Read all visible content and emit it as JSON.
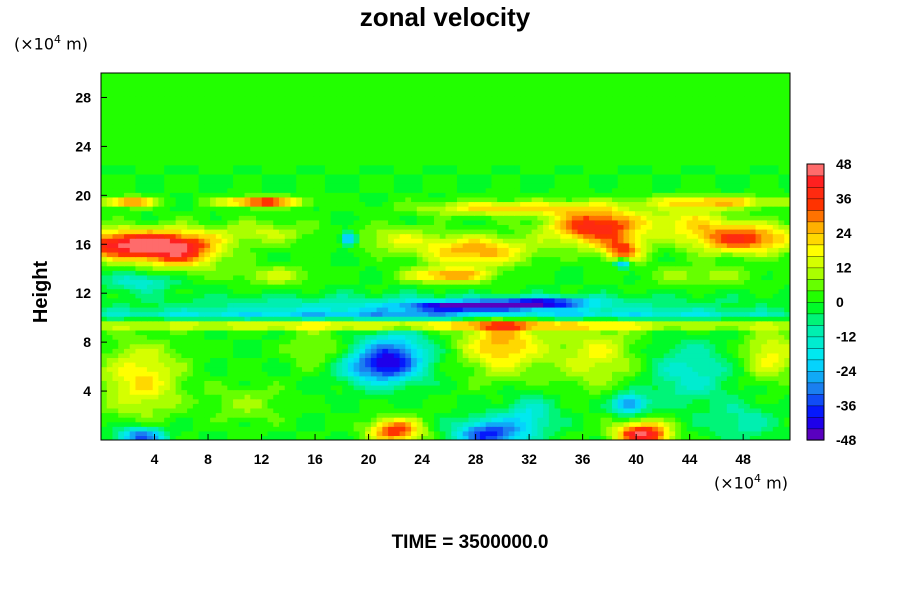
{
  "chart_data": {
    "type": "heatmap",
    "title": "zonal velocity",
    "xlabel": "",
    "ylabel": "Height",
    "x_unit_label": "(×10",
    "x_unit_exp": "4",
    "x_unit_tail": " m)",
    "y_unit_label": "(×10",
    "y_unit_exp": "4",
    "y_unit_tail": " m)",
    "xlim": [
      0,
      51.5
    ],
    "ylim": [
      0,
      30
    ],
    "x_ticks": [
      4,
      8,
      12,
      16,
      20,
      24,
      28,
      32,
      36,
      40,
      44,
      48
    ],
    "y_ticks": [
      4,
      8,
      12,
      16,
      20,
      24,
      28
    ],
    "colorbar": {
      "min": -48,
      "max": 48,
      "step": 4,
      "ticks": [
        48,
        36,
        24,
        12,
        0,
        -12,
        -24,
        -36,
        -48
      ],
      "stops": [
        {
          "v": -48,
          "color": "#7700aa"
        },
        {
          "v": -40,
          "color": "#0000ff"
        },
        {
          "v": -30,
          "color": "#1a7ff0"
        },
        {
          "v": -20,
          "color": "#00e8ff"
        },
        {
          "v": -8,
          "color": "#00f0a0"
        },
        {
          "v": 0,
          "color": "#00ff00"
        },
        {
          "v": 10,
          "color": "#aaff00"
        },
        {
          "v": 18,
          "color": "#ffff00"
        },
        {
          "v": 26,
          "color": "#ffb000"
        },
        {
          "v": 34,
          "color": "#ff3300"
        },
        {
          "v": 42,
          "color": "#ff2020"
        },
        {
          "v": 48,
          "color": "#ff9090"
        }
      ]
    },
    "features": [
      {
        "x": 2,
        "y": 16,
        "sx": 4.5,
        "sy": 1.2,
        "v": 44
      },
      {
        "x": 6,
        "y": 15.5,
        "sx": 3,
        "sy": 1.5,
        "v": 30
      },
      {
        "x": 48,
        "y": 16.5,
        "sx": 4,
        "sy": 1.2,
        "v": 36
      },
      {
        "x": 37,
        "y": 17.5,
        "sx": 3.5,
        "sy": 1.5,
        "v": 40
      },
      {
        "x": 39,
        "y": 15.5,
        "sx": 1.5,
        "sy": 1.0,
        "v": 30
      },
      {
        "x": 28,
        "y": 15.5,
        "sx": 4,
        "sy": 1.2,
        "v": 28
      },
      {
        "x": 22,
        "y": 16.5,
        "sx": 3,
        "sy": 1.0,
        "v": 14
      },
      {
        "x": 12,
        "y": 17,
        "sx": 4,
        "sy": 1.0,
        "v": 12
      },
      {
        "x": 44,
        "y": 18,
        "sx": 3,
        "sy": 1.2,
        "v": 16
      },
      {
        "x": 12,
        "y": 19.5,
        "sx": 3,
        "sy": 0.4,
        "v": 40
      },
      {
        "x": 2,
        "y": 19.5,
        "sx": 2,
        "sy": 0.4,
        "v": 34
      },
      {
        "x": 30,
        "y": 19,
        "sx": 6,
        "sy": 0.6,
        "v": 22
      },
      {
        "x": 46,
        "y": 19.5,
        "sx": 5,
        "sy": 0.5,
        "v": 24
      },
      {
        "x": 18.5,
        "y": 16.5,
        "sx": 0.6,
        "sy": 0.5,
        "v": -38
      },
      {
        "x": 39,
        "y": 14.5,
        "sx": 0.6,
        "sy": 0.4,
        "v": -34
      },
      {
        "x": 26,
        "y": 13.5,
        "sx": 3,
        "sy": 0.6,
        "v": 28
      },
      {
        "x": 13,
        "y": 13.5,
        "sx": 3,
        "sy": 0.8,
        "v": 12
      },
      {
        "x": 45,
        "y": 13.5,
        "sx": 4,
        "sy": 0.8,
        "v": 10
      },
      {
        "x": 3,
        "y": 13,
        "sx": 2.5,
        "sy": 0.8,
        "v": -16
      },
      {
        "x": 28,
        "y": 11,
        "sx": 5,
        "sy": 0.4,
        "v": -40
      },
      {
        "x": 33,
        "y": 11.3,
        "sx": 4,
        "sy": 0.4,
        "v": -30
      },
      {
        "x": 25,
        "y": 11,
        "sx": 20,
        "sy": 0.9,
        "v": -14
      },
      {
        "x": 25,
        "y": 10.3,
        "sx": 30,
        "sy": 0.4,
        "v": -18
      },
      {
        "x": 25,
        "y": 9.4,
        "sx": 30,
        "sy": 0.35,
        "v": 22
      },
      {
        "x": 30,
        "y": 8,
        "sx": 3,
        "sy": 2.5,
        "v": 26
      },
      {
        "x": 3,
        "y": 5,
        "sx": 3,
        "sy": 3.0,
        "v": 20
      },
      {
        "x": 16,
        "y": 7.5,
        "sx": 2,
        "sy": 1.5,
        "v": 10
      },
      {
        "x": 21,
        "y": 6,
        "sx": 2.8,
        "sy": 1.4,
        "v": -36
      },
      {
        "x": 22,
        "y": 7.5,
        "sx": 2.5,
        "sy": 1.5,
        "v": -22
      },
      {
        "x": 37,
        "y": 7,
        "sx": 3,
        "sy": 2.5,
        "v": 16
      },
      {
        "x": 44,
        "y": 5.5,
        "sx": 3,
        "sy": 2.5,
        "v": -14
      },
      {
        "x": 50,
        "y": 7,
        "sx": 2,
        "sy": 2.0,
        "v": 18
      },
      {
        "x": 39.5,
        "y": 3,
        "sx": 1.2,
        "sy": 0.8,
        "v": -32
      },
      {
        "x": 11,
        "y": 3,
        "sx": 3,
        "sy": 1.5,
        "v": 8
      },
      {
        "x": 3,
        "y": 0.3,
        "sx": 1.8,
        "sy": 0.8,
        "v": -34
      },
      {
        "x": 29,
        "y": 0.5,
        "sx": 2.5,
        "sy": 1.2,
        "v": -38
      },
      {
        "x": 40.5,
        "y": 0.5,
        "sx": 2,
        "sy": 1.0,
        "v": 46
      },
      {
        "x": 22,
        "y": 0.8,
        "sx": 2,
        "sy": 1.0,
        "v": 36
      },
      {
        "x": 32,
        "y": 2,
        "sx": 2,
        "sy": 1.5,
        "v": -16
      },
      {
        "x": 48,
        "y": 1.5,
        "sx": 2.5,
        "sy": 1.5,
        "v": -10
      }
    ]
  },
  "footer": {
    "time_text": "TIME = 3500000.0"
  }
}
